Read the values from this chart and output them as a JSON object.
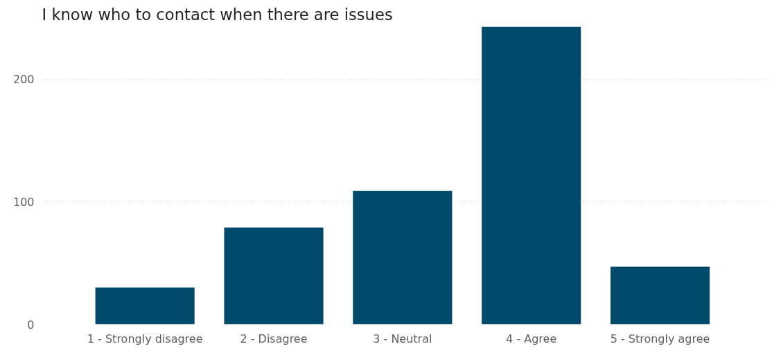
{
  "chart_data": {
    "type": "bar",
    "title": "I know who to contact when there are issues",
    "categories": [
      "1 - Strongly disagree",
      "2 - Disagree",
      "3 - Neutral",
      "4 - Agree",
      "5 - Strongly agree"
    ],
    "values": [
      30,
      79,
      109,
      243,
      47
    ],
    "color": "#004a6b",
    "ylim": [
      0,
      243
    ],
    "yticks": [
      0,
      100,
      200
    ],
    "grid": "y"
  }
}
